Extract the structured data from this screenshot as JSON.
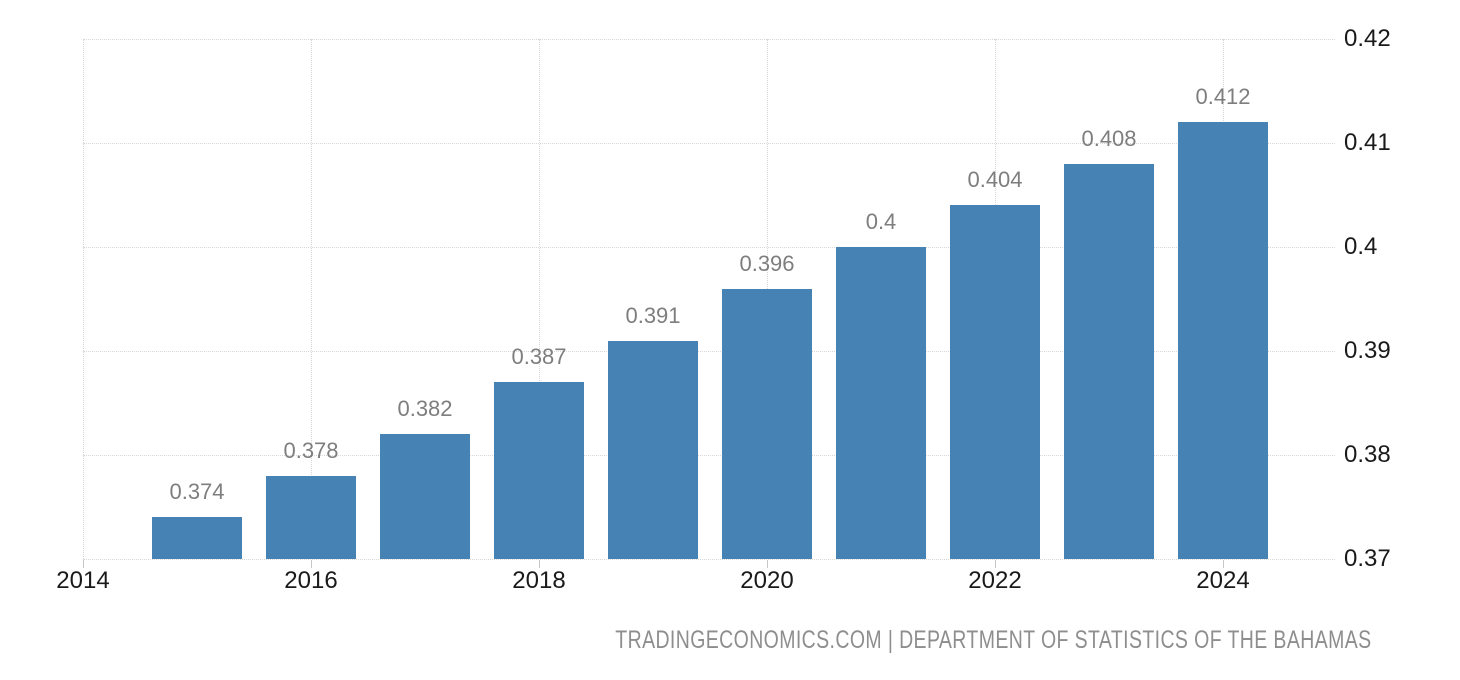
{
  "chart_data": {
    "type": "bar",
    "title": "",
    "xlabel": "",
    "ylabel": "",
    "x": [
      2015,
      2016,
      2017,
      2018,
      2019,
      2020,
      2021,
      2022,
      2023,
      2024
    ],
    "values": [
      0.374,
      0.378,
      0.382,
      0.387,
      0.391,
      0.396,
      0.4,
      0.404,
      0.408,
      0.412
    ],
    "value_labels": [
      "0.374",
      "0.378",
      "0.382",
      "0.387",
      "0.391",
      "0.396",
      "0.4",
      "0.404",
      "0.408",
      "0.412"
    ],
    "xticks": [
      {
        "year": 2014,
        "label": "2014"
      },
      {
        "year": 2016,
        "label": "2016"
      },
      {
        "year": 2018,
        "label": "2018"
      },
      {
        "year": 2020,
        "label": "2020"
      },
      {
        "year": 2022,
        "label": "2022"
      },
      {
        "year": 2024,
        "label": "2024"
      }
    ],
    "yticks": [
      {
        "value": 0.42,
        "label": "0.42"
      },
      {
        "value": 0.41,
        "label": "0.41"
      },
      {
        "value": 0.4,
        "label": "0.4"
      },
      {
        "value": 0.39,
        "label": "0.39"
      },
      {
        "value": 0.38,
        "label": "0.38"
      },
      {
        "value": 0.37,
        "label": "0.37"
      }
    ],
    "ylim": [
      0.37,
      0.42
    ],
    "xlim": [
      2014,
      2025
    ],
    "grid": "dotted",
    "legend_position": "none",
    "y_axis_side": "right"
  },
  "footer": {
    "text": "TRADINGECONOMICS.COM | DEPARTMENT OF STATISTICS OF THE BAHAMAS"
  },
  "colors": {
    "bar": "#4682b4",
    "value_label": "#7e7e7e",
    "axis_label": "#1a1a1a",
    "gridline": "#d7d7d7",
    "tick": "#c8c8c8",
    "footer": "#8e8e8e",
    "background": "#ffffff"
  }
}
